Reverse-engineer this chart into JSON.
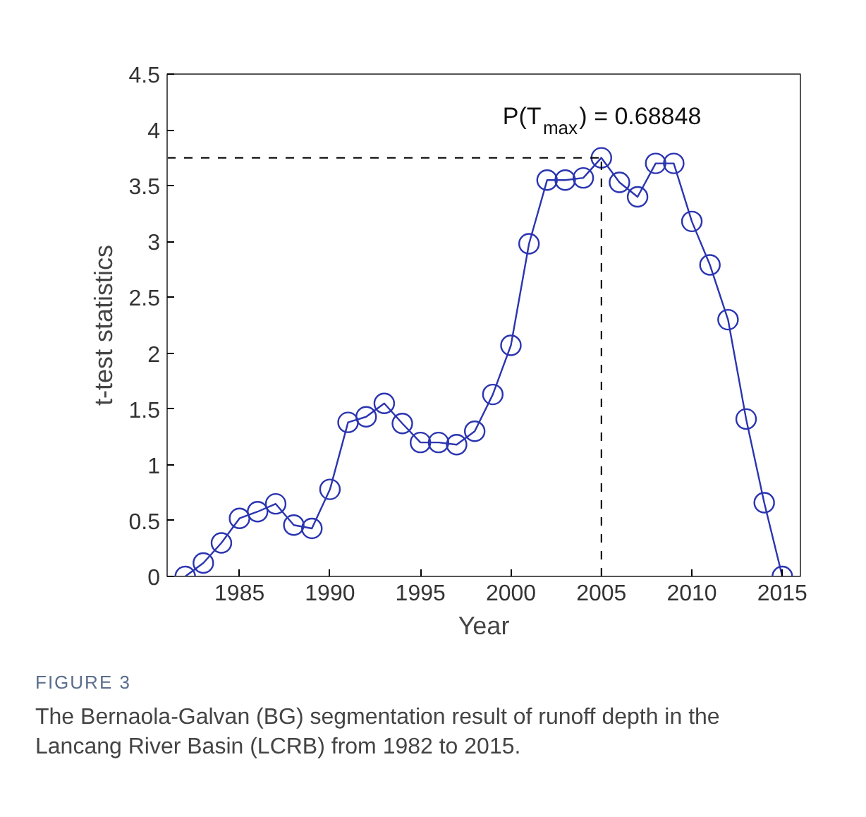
{
  "chart_data": {
    "type": "line",
    "xlabel": "Year",
    "ylabel": "t-test statistics",
    "x": [
      1982,
      1983,
      1984,
      1985,
      1986,
      1987,
      1988,
      1989,
      1990,
      1991,
      1992,
      1993,
      1994,
      1995,
      1996,
      1997,
      1998,
      1999,
      2000,
      2001,
      2002,
      2003,
      2004,
      2005,
      2006,
      2007,
      2008,
      2009,
      2010,
      2011,
      2012,
      2013,
      2014,
      2015
    ],
    "series": [
      {
        "color": "#2b35b0",
        "values": [
          0,
          0.12,
          0.3,
          0.52,
          0.58,
          0.65,
          0.46,
          0.43,
          0.78,
          1.38,
          1.43,
          1.55,
          1.37,
          1.2,
          1.2,
          1.18,
          1.3,
          1.63,
          2.07,
          2.98,
          3.55,
          3.55,
          3.57,
          3.75,
          3.53,
          3.4,
          3.7,
          3.7,
          3.18,
          2.79,
          2.3,
          1.41,
          0.66,
          0
        ]
      }
    ],
    "marker": "circle",
    "line_style": "solid",
    "grid": false,
    "xlim": [
      1981,
      2016
    ],
    "xticks": [
      1985,
      1990,
      1995,
      2000,
      2005,
      2010,
      2015
    ],
    "ylim": [
      0,
      4.5
    ],
    "yticks": [
      0,
      0.5,
      1,
      1.5,
      2,
      2.5,
      3,
      3.5,
      4,
      4.5
    ],
    "ref_lines": [
      {
        "axis": "y",
        "value": 3.75,
        "line_style": "dashed",
        "color": "#000000"
      },
      {
        "axis": "x",
        "value": 2005,
        "line_style": "dashed",
        "color": "#000000"
      }
    ],
    "annotations": [
      {
        "text": "P(T$_{max}$) = 0.68848",
        "x": 2005,
        "y": 3.75
      },
      "FIGURE 3",
      "The Bernaola-Galvan (BG) segmentation result of runoff depth in the Lancang River Basin (LCRB) from 1982 to 2015."
    ]
  }
}
